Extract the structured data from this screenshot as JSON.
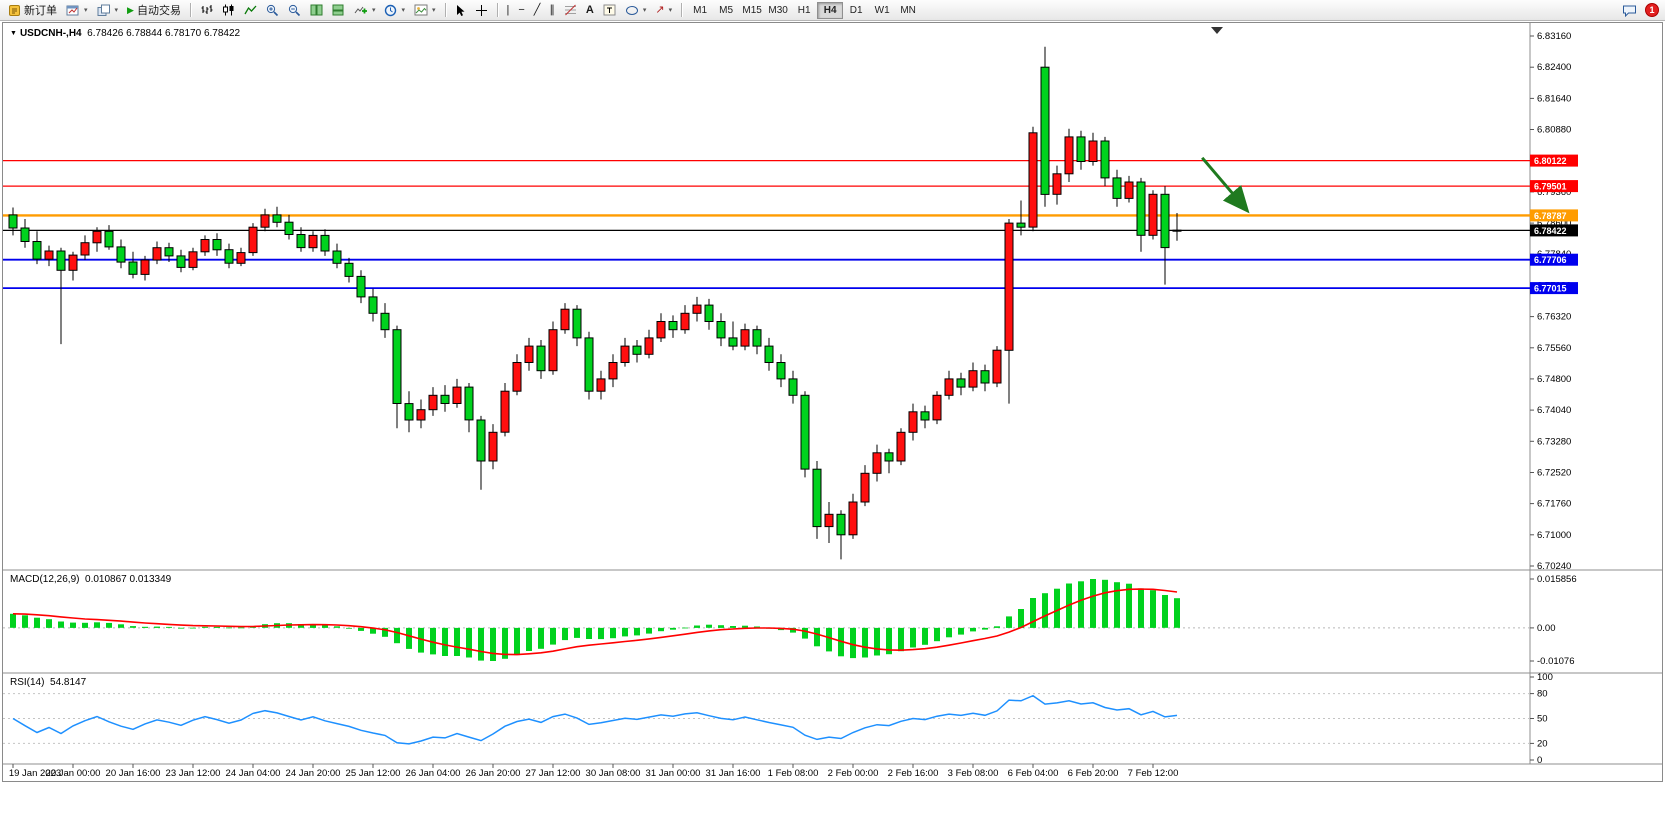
{
  "toolbar": {
    "new_order": "新订单",
    "autotrading": "自动交易",
    "timeframes": [
      "M1",
      "M5",
      "M15",
      "M30",
      "H1",
      "H4",
      "D1",
      "W1",
      "MN"
    ],
    "active_timeframe": "H4",
    "notification_count": "1"
  },
  "icons": {
    "caret": "▾",
    "autotrading_play": "▶",
    "vertical_line": "|",
    "horizontal_line": "−",
    "trendline": "╱",
    "channel": "∥",
    "text_tool": "A",
    "arrow_tool": "↗"
  },
  "chart": {
    "title": "USDCNH-,H4",
    "ohlc": "6.78426 6.78844 6.78170 6.78422",
    "macd_label": "MACD(12,26,9)",
    "macd_values": "0.010867 0.013349",
    "rsi_label": "RSI(14)",
    "rsi_value": "54.8147"
  },
  "chart_data": {
    "type": "candlestick",
    "symbol": "USDCNH-",
    "timeframe": "H4",
    "bull_color": "#ff0f0f",
    "bear_color": "#00d21e",
    "current_ohlc": {
      "open": 6.78426,
      "high": 6.78844,
      "low": 6.7817,
      "close": 6.78422
    },
    "price_axis": {
      "ticks": [
        6.7024,
        6.71,
        6.7176,
        6.7252,
        6.7328,
        6.7404,
        6.748,
        6.7556,
        6.7632,
        6.7708,
        6.7784,
        6.786,
        6.7936,
        6.8012,
        6.8088,
        6.8164,
        6.824,
        6.8316
      ]
    },
    "levels": [
      {
        "label": "6.80122",
        "price": 6.80122,
        "color": "#ff0000",
        "width": 1.2
      },
      {
        "label": "6.79501",
        "price": 6.79501,
        "color": "#ff0000",
        "width": 1.2
      },
      {
        "label": "6.78787",
        "price": 6.78787,
        "color": "#ff9c00",
        "width": 2.4
      },
      {
        "label": "6.78422",
        "price": 6.78422,
        "color": "#000000",
        "width": 1.2
      },
      {
        "label": "6.77706",
        "price": 6.77706,
        "color": "#0000ee",
        "width": 1.8
      },
      {
        "label": "6.77015",
        "price": 6.77015,
        "color": "#0000ee",
        "width": 1.8
      }
    ],
    "time_axis": {
      "candles_per_label": 5,
      "labels": [
        "19 Jan 2023",
        "20 Jan 00:00",
        "20 Jan 16:00",
        "23 Jan 12:00",
        "24 Jan 04:00",
        "24 Jan 20:00",
        "25 Jan 12:00",
        "26 Jan 04:00",
        "26 Jan 20:00",
        "27 Jan 12:00",
        "30 Jan 08:00",
        "31 Jan 00:00",
        "31 Jan 16:00",
        "1 Feb 08:00",
        "2 Feb 00:00",
        "2 Feb 16:00",
        "3 Feb 08:00",
        "6 Feb 04:00",
        "6 Feb 20:00",
        "7 Feb 12:00"
      ]
    },
    "candles": [
      [
        6.788,
        6.7898,
        6.783,
        6.7848
      ],
      [
        6.7848,
        6.787,
        6.78,
        6.7815
      ],
      [
        6.7815,
        6.784,
        6.776,
        6.7772
      ],
      [
        6.7772,
        6.7805,
        6.7755,
        6.7792
      ],
      [
        6.7792,
        6.78,
        6.7565,
        6.7745
      ],
      [
        6.7745,
        6.779,
        6.772,
        6.7782
      ],
      [
        6.7782,
        6.783,
        6.777,
        6.7812
      ],
      [
        6.7812,
        6.785,
        6.779,
        6.784
      ],
      [
        6.784,
        6.7855,
        6.7795,
        6.7802
      ],
      [
        6.7802,
        6.782,
        6.775,
        6.7765
      ],
      [
        6.7765,
        6.779,
        6.7725,
        6.7735
      ],
      [
        6.7735,
        6.778,
        6.772,
        6.777
      ],
      [
        6.777,
        6.7815,
        6.776,
        6.78
      ],
      [
        6.78,
        6.7812,
        6.7765,
        6.778
      ],
      [
        6.778,
        6.7795,
        6.774,
        6.7752
      ],
      [
        6.7752,
        6.78,
        6.7745,
        6.779
      ],
      [
        6.779,
        6.783,
        6.778,
        6.782
      ],
      [
        6.782,
        6.7835,
        6.778,
        6.7795
      ],
      [
        6.7795,
        6.781,
        6.775,
        6.7762
      ],
      [
        6.7762,
        6.78,
        6.7755,
        6.7788
      ],
      [
        6.7788,
        6.786,
        6.778,
        6.785
      ],
      [
        6.785,
        6.7895,
        6.784,
        6.788
      ],
      [
        6.788,
        6.79,
        6.785,
        6.7862
      ],
      [
        6.7862,
        6.788,
        6.782,
        6.7832
      ],
      [
        6.7832,
        6.785,
        6.779,
        6.78
      ],
      [
        6.78,
        6.784,
        6.779,
        6.783
      ],
      [
        6.783,
        6.7845,
        6.778,
        6.7792
      ],
      [
        6.7792,
        6.781,
        6.775,
        6.7762
      ],
      [
        6.7762,
        6.7775,
        6.7715,
        6.773
      ],
      [
        6.773,
        6.7745,
        6.7665,
        6.768
      ],
      [
        6.768,
        6.77,
        6.762,
        6.764
      ],
      [
        6.764,
        6.7665,
        6.758,
        6.76
      ],
      [
        6.76,
        6.761,
        6.736,
        6.742
      ],
      [
        6.742,
        6.745,
        6.735,
        6.738
      ],
      [
        6.738,
        6.743,
        6.736,
        6.7405
      ],
      [
        6.7405,
        6.746,
        6.739,
        6.744
      ],
      [
        6.744,
        6.7465,
        6.74,
        6.742
      ],
      [
        6.742,
        6.748,
        6.741,
        6.746
      ],
      [
        6.746,
        6.747,
        6.735,
        6.738
      ],
      [
        6.738,
        6.739,
        6.721,
        6.728
      ],
      [
        6.728,
        6.737,
        6.726,
        6.735
      ],
      [
        6.735,
        6.747,
        6.734,
        6.745
      ],
      [
        6.745,
        6.754,
        6.744,
        6.752
      ],
      [
        6.752,
        6.758,
        6.75,
        6.756
      ],
      [
        6.756,
        6.7575,
        6.748,
        6.75
      ],
      [
        6.75,
        6.762,
        6.749,
        6.76
      ],
      [
        6.76,
        6.7665,
        6.759,
        6.765
      ],
      [
        6.765,
        6.766,
        6.756,
        6.758
      ],
      [
        6.758,
        6.7595,
        6.743,
        6.745
      ],
      [
        6.745,
        6.75,
        6.743,
        6.748
      ],
      [
        6.748,
        6.754,
        6.746,
        6.752
      ],
      [
        6.752,
        6.758,
        6.751,
        6.756
      ],
      [
        6.756,
        6.7575,
        6.752,
        6.754
      ],
      [
        6.754,
        6.76,
        6.753,
        6.758
      ],
      [
        6.758,
        6.764,
        6.757,
        6.762
      ],
      [
        6.762,
        6.7635,
        6.758,
        6.76
      ],
      [
        6.76,
        6.766,
        6.759,
        6.764
      ],
      [
        6.764,
        6.768,
        6.762,
        6.766
      ],
      [
        6.766,
        6.7675,
        6.76,
        6.762
      ],
      [
        6.762,
        6.764,
        6.756,
        6.758
      ],
      [
        6.758,
        6.762,
        6.755,
        6.756
      ],
      [
        6.756,
        6.7615,
        6.755,
        6.76
      ],
      [
        6.76,
        6.761,
        6.754,
        6.756
      ],
      [
        6.756,
        6.758,
        6.75,
        6.752
      ],
      [
        6.752,
        6.754,
        6.746,
        6.748
      ],
      [
        6.748,
        6.75,
        6.742,
        6.744
      ],
      [
        6.744,
        6.745,
        6.724,
        6.726
      ],
      [
        6.726,
        6.728,
        6.709,
        6.712
      ],
      [
        6.712,
        6.718,
        6.708,
        6.715
      ],
      [
        6.715,
        6.716,
        6.704,
        6.71
      ],
      [
        6.71,
        6.72,
        6.709,
        6.718
      ],
      [
        6.718,
        6.727,
        6.717,
        6.725
      ],
      [
        6.725,
        6.732,
        6.723,
        6.73
      ],
      [
        6.73,
        6.731,
        6.725,
        6.728
      ],
      [
        6.728,
        6.736,
        6.727,
        6.735
      ],
      [
        6.735,
        6.742,
        6.733,
        6.74
      ],
      [
        6.74,
        6.7415,
        6.736,
        6.738
      ],
      [
        6.738,
        6.745,
        6.737,
        6.744
      ],
      [
        6.744,
        6.75,
        6.743,
        6.748
      ],
      [
        6.748,
        6.7495,
        6.744,
        6.746
      ],
      [
        6.746,
        6.752,
        6.745,
        6.75
      ],
      [
        6.75,
        6.7515,
        6.745,
        6.747
      ],
      [
        6.747,
        6.756,
        6.746,
        6.755
      ],
      [
        6.755,
        6.787,
        6.742,
        6.786
      ],
      [
        6.786,
        6.7915,
        6.783,
        6.785
      ],
      [
        6.785,
        6.8095,
        6.784,
        6.808
      ],
      [
        6.824,
        6.829,
        6.79,
        6.793
      ],
      [
        6.793,
        6.8,
        6.7905,
        6.798
      ],
      [
        6.798,
        6.809,
        6.796,
        6.807
      ],
      [
        6.807,
        6.8085,
        6.799,
        6.801
      ],
      [
        6.801,
        6.808,
        6.8,
        6.806
      ],
      [
        6.806,
        6.807,
        6.795,
        6.797
      ],
      [
        6.797,
        6.799,
        6.79,
        6.792
      ],
      [
        6.792,
        6.7975,
        6.791,
        6.796
      ],
      [
        6.796,
        6.797,
        6.779,
        6.783
      ],
      [
        6.783,
        6.794,
        6.782,
        6.793
      ],
      [
        6.793,
        6.795,
        6.771,
        6.78
      ],
      [
        6.78426,
        6.78844,
        6.7817,
        6.78422
      ]
    ],
    "macd": {
      "label": "MACD(12,26,9)",
      "main": 0.010867,
      "signal": 0.013349,
      "axis_max": 0.015856,
      "axis_min": -0.01076,
      "axis_labels": [
        "0.015856",
        "0.00",
        "-0.01076"
      ],
      "histogram_color": "#00d21e",
      "signal_color": "#ff0000"
    },
    "rsi": {
      "label": "RSI(14)",
      "value": 54.8147,
      "axis_labels": [
        "100",
        "80",
        "50",
        "20",
        "0"
      ],
      "axis_values": [
        100,
        80,
        50,
        20,
        0
      ],
      "levels": [
        80,
        50,
        20
      ],
      "line_color": "#1E90FF"
    },
    "arrow_annotation": {
      "from_index": 99.1,
      "from_price": 6.8019,
      "to_index": 102.8,
      "to_price": 6.7892,
      "color": "#1f7a1f"
    }
  }
}
